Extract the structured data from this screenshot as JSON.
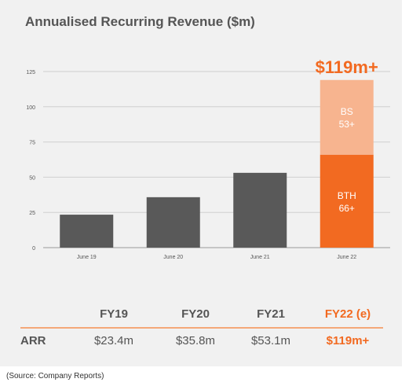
{
  "title": "Annualised Recurring Revenue ($m)",
  "chart_data": {
    "type": "bar",
    "stacked": true,
    "categories": [
      "June 19",
      "June 20",
      "June 21",
      "June 22"
    ],
    "series": [
      {
        "name": "BTH",
        "values": [
          23.4,
          35.8,
          53.1,
          66
        ]
      },
      {
        "name": "BS",
        "values": [
          0,
          0,
          0,
          53
        ]
      }
    ],
    "colors": {
      "historical": "#595959",
      "BTH": "#f26a21",
      "BS": "#f7b48f"
    },
    "ylim": [
      0,
      125
    ],
    "yticks": [
      0,
      25,
      50,
      75,
      100,
      125
    ],
    "grid": true,
    "segment_labels": {
      "BS": [
        "BS",
        "53+"
      ],
      "BTH": [
        "BTH",
        "66+"
      ]
    },
    "total_label": "$119m+"
  },
  "table": {
    "headers": [
      "FY19",
      "FY20",
      "FY21",
      "FY22 (e)"
    ],
    "row_label": "ARR",
    "values": [
      "$23.4m",
      "$35.8m",
      "$53.1m",
      "$119m+"
    ]
  },
  "source": "(Source: Company Reports)"
}
